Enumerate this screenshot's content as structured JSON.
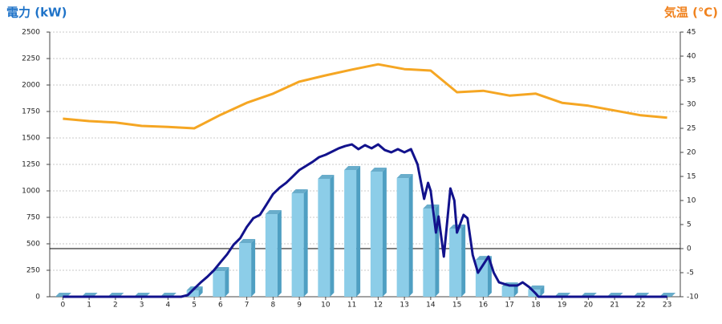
{
  "chart_data": {
    "type": "bar",
    "y_title": "電力 (kW)",
    "y2_title": "気温 (℃)",
    "y_title_color": "#1f73c8",
    "y2_title_color": "#f0821e",
    "categories": [
      "0",
      "1",
      "2",
      "3",
      "4",
      "5",
      "6",
      "7",
      "8",
      "9",
      "10",
      "11",
      "12",
      "13",
      "14",
      "15",
      "16",
      "17",
      "18",
      "19",
      "20",
      "21",
      "22",
      "23"
    ],
    "ylim": [
      0,
      2500
    ],
    "yticks": [
      0,
      250,
      500,
      750,
      1000,
      1250,
      1500,
      1750,
      2000,
      2250,
      2500
    ],
    "y2lim": [
      -10,
      45
    ],
    "y2ticks": [
      -10,
      -5,
      0,
      5,
      10,
      15,
      20,
      25,
      30,
      35,
      40,
      45
    ],
    "grid": true,
    "y2_zero_line": true,
    "series": [
      {
        "type": "bar",
        "color": "#8ccde8",
        "side_color": "#4f9fc2",
        "values": [
          0,
          0,
          0,
          0,
          0,
          60,
          242,
          508,
          780,
          977,
          1114,
          1197,
          1182,
          1121,
          833,
          644,
          348,
          98,
          68,
          0,
          0,
          0,
          0,
          0
        ]
      },
      {
        "type": "line",
        "color": "#12128c",
        "x": [
          0,
          4.5,
          4.75,
          5,
          5.25,
          5.5,
          5.75,
          6,
          6.25,
          6.5,
          6.75,
          7,
          7.25,
          7.5,
          7.75,
          8,
          8.25,
          8.5,
          8.75,
          9,
          9.25,
          9.5,
          9.75,
          10,
          10.25,
          10.5,
          10.75,
          11,
          11.25,
          11.5,
          11.75,
          12,
          12.25,
          12.5,
          12.75,
          13,
          13.25,
          13.5,
          13.75,
          13.9,
          14,
          14.2,
          14.3,
          14.5,
          14.75,
          14.9,
          15,
          15.25,
          15.4,
          15.6,
          15.8,
          16,
          16.2,
          16.4,
          16.6,
          17,
          17.3,
          17.5,
          17.75,
          18,
          18.1,
          23
        ],
        "values": [
          0,
          0,
          15,
          76,
          136,
          189,
          250,
          326,
          400,
          492,
          553,
          659,
          742,
          773,
          871,
          970,
          1030,
          1076,
          1136,
          1197,
          1235,
          1273,
          1318,
          1341,
          1371,
          1402,
          1424,
          1439,
          1394,
          1432,
          1402,
          1439,
          1386,
          1364,
          1394,
          1364,
          1394,
          1250,
          924,
          1076,
          1000,
          606,
          758,
          379,
          1023,
          909,
          606,
          773,
          742,
          394,
          227,
          303,
          379,
          227,
          136,
          106,
          106,
          136,
          91,
          30,
          0,
          0
        ]
      },
      {
        "type": "line",
        "axis": "y2",
        "color": "#f5a623",
        "values": [
          27,
          26.5,
          26.2,
          25.5,
          25.3,
          25,
          27.8,
          30.3,
          32.2,
          34.7,
          36,
          37.2,
          38.3,
          37.3,
          37,
          32.5,
          32.8,
          31.8,
          32.2,
          30.3,
          29.7,
          28.7,
          27.7,
          27.2
        ]
      }
    ]
  }
}
